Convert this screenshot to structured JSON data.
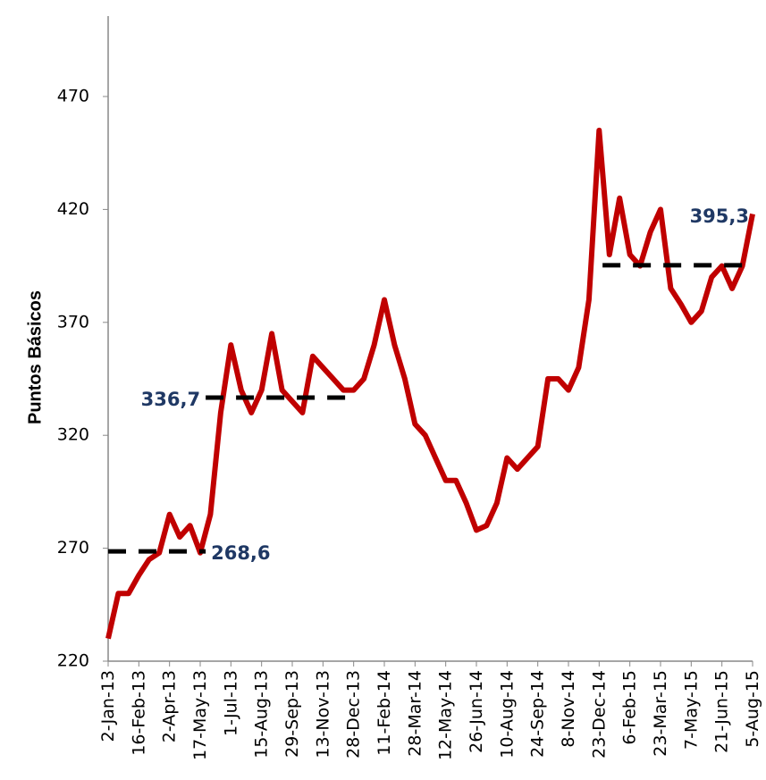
{
  "chart_data": {
    "type": "line",
    "y_label": "Puntos Básicos",
    "x": [
      "2013-01-02",
      "2013-01-17",
      "2013-02-01",
      "2013-02-16",
      "2013-03-03",
      "2013-03-18",
      "2013-04-02",
      "2013-04-17",
      "2013-05-02",
      "2013-05-17",
      "2013-06-01",
      "2013-06-16",
      "2013-07-01",
      "2013-07-16",
      "2013-07-31",
      "2013-08-15",
      "2013-08-30",
      "2013-09-14",
      "2013-09-29",
      "2013-10-14",
      "2013-10-29",
      "2013-11-13",
      "2013-11-28",
      "2013-12-13",
      "2013-12-28",
      "2014-01-12",
      "2014-01-27",
      "2014-02-11",
      "2014-02-26",
      "2014-03-13",
      "2014-03-28",
      "2014-04-12",
      "2014-04-27",
      "2014-05-12",
      "2014-05-27",
      "2014-06-11",
      "2014-06-26",
      "2014-07-11",
      "2014-07-26",
      "2014-08-10",
      "2014-08-25",
      "2014-09-09",
      "2014-09-24",
      "2014-10-09",
      "2014-10-24",
      "2014-11-08",
      "2014-11-23",
      "2014-12-08",
      "2014-12-23",
      "2015-01-07",
      "2015-01-22",
      "2015-02-06",
      "2015-02-21",
      "2015-03-08",
      "2015-03-23",
      "2015-04-07",
      "2015-04-22",
      "2015-05-07",
      "2015-05-22",
      "2015-06-06",
      "2015-06-21",
      "2015-07-06",
      "2015-07-21",
      "2015-08-05"
    ],
    "series": [
      {
        "color": "#c00000",
        "values": [
          230,
          250,
          250,
          258,
          265,
          268,
          285,
          275,
          280,
          268,
          285,
          330,
          360,
          340,
          330,
          340,
          365,
          340,
          335,
          330,
          355,
          350,
          345,
          340,
          340,
          345,
          360,
          380,
          360,
          345,
          325,
          320,
          310,
          300,
          300,
          290,
          278,
          280,
          290,
          310,
          305,
          310,
          315,
          345,
          345,
          340,
          350,
          380,
          455,
          400,
          425,
          400,
          395,
          410,
          420,
          385,
          378,
          370,
          375,
          390,
          395,
          385,
          395,
          418
        ]
      }
    ],
    "averages": [
      {
        "value": 268.6,
        "label": "268,6",
        "start": "2013-01-02",
        "end": "2013-05-25"
      },
      {
        "value": 336.7,
        "label": "336,7",
        "start": "2013-05-25",
        "end": "2013-12-24"
      },
      {
        "value": 395.3,
        "label": "395,3",
        "start": "2014-12-28",
        "end": "2015-08-05"
      }
    ],
    "average_color": "#000000",
    "label_color": "#1f3864",
    "xlim": [
      "2013-01-02",
      "2015-08-05"
    ],
    "xticks": [
      {
        "value": "2013-01-02",
        "label": "2-Jan-13"
      },
      {
        "value": "2013-02-16",
        "label": "16-Feb-13"
      },
      {
        "value": "2013-04-02",
        "label": "2-Apr-13"
      },
      {
        "value": "2013-05-17",
        "label": "17-May-13"
      },
      {
        "value": "2013-07-01",
        "label": "1-Jul-13"
      },
      {
        "value": "2013-08-15",
        "label": "15-Aug-13"
      },
      {
        "value": "2013-09-29",
        "label": "29-Sep-13"
      },
      {
        "value": "2013-11-13",
        "label": "13-Nov-13"
      },
      {
        "value": "2013-12-28",
        "label": "28-Dec-13"
      },
      {
        "value": "2014-02-11",
        "label": "11-Feb-14"
      },
      {
        "value": "2014-03-28",
        "label": "28-Mar-14"
      },
      {
        "value": "2014-05-12",
        "label": "12-May-14"
      },
      {
        "value": "2014-06-26",
        "label": "26-Jun-14"
      },
      {
        "value": "2014-08-10",
        "label": "10-Aug-14"
      },
      {
        "value": "2014-09-24",
        "label": "24-Sep-14"
      },
      {
        "value": "2014-11-08",
        "label": "8-Nov-14"
      },
      {
        "value": "2014-12-23",
        "label": "23-Dec-14"
      },
      {
        "value": "2015-02-06",
        "label": "6-Feb-15"
      },
      {
        "value": "2015-03-23",
        "label": "23-Mar-15"
      },
      {
        "value": "2015-05-07",
        "label": "7-May-15"
      },
      {
        "value": "2015-06-21",
        "label": "21-Jun-15"
      },
      {
        "value": "2015-08-05",
        "label": "5-Aug-15"
      }
    ],
    "ylim": [
      220,
      470
    ],
    "yticks": [
      220,
      270,
      320,
      370,
      420,
      470
    ]
  }
}
